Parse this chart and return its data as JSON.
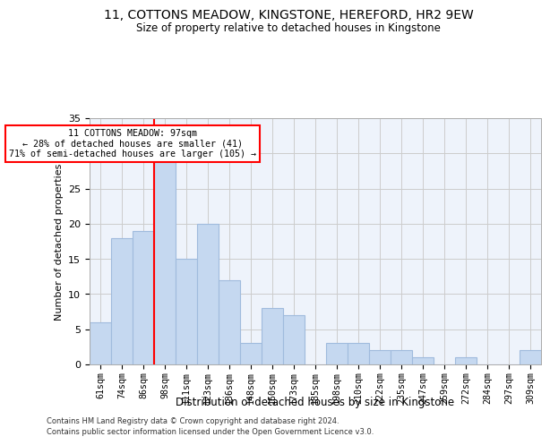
{
  "title": "11, COTTONS MEADOW, KINGSTONE, HEREFORD, HR2 9EW",
  "subtitle": "Size of property relative to detached houses in Kingstone",
  "xlabel": "Distribution of detached houses by size in Kingstone",
  "ylabel": "Number of detached properties",
  "bar_labels": [
    "61sqm",
    "74sqm",
    "86sqm",
    "98sqm",
    "111sqm",
    "123sqm",
    "136sqm",
    "148sqm",
    "160sqm",
    "173sqm",
    "185sqm",
    "198sqm",
    "210sqm",
    "222sqm",
    "235sqm",
    "247sqm",
    "259sqm",
    "272sqm",
    "284sqm",
    "297sqm",
    "309sqm"
  ],
  "bar_values": [
    6,
    18,
    19,
    29,
    15,
    20,
    12,
    3,
    8,
    7,
    0,
    3,
    3,
    2,
    2,
    1,
    0,
    1,
    0,
    0,
    2
  ],
  "bar_color": "#c5d8f0",
  "bar_edge_color": "#a0bbdd",
  "marker_bin_index": 3,
  "annotation_text": "11 COTTONS MEADOW: 97sqm\n← 28% of detached houses are smaller (41)\n71% of semi-detached houses are larger (105) →",
  "annotation_box_color": "white",
  "annotation_box_edge": "red",
  "marker_line_color": "red",
  "ylim": [
    0,
    35
  ],
  "yticks": [
    0,
    5,
    10,
    15,
    20,
    25,
    30,
    35
  ],
  "grid_color": "#cccccc",
  "bg_color": "#eef3fb",
  "footer1": "Contains HM Land Registry data © Crown copyright and database right 2024.",
  "footer2": "Contains public sector information licensed under the Open Government Licence v3.0."
}
